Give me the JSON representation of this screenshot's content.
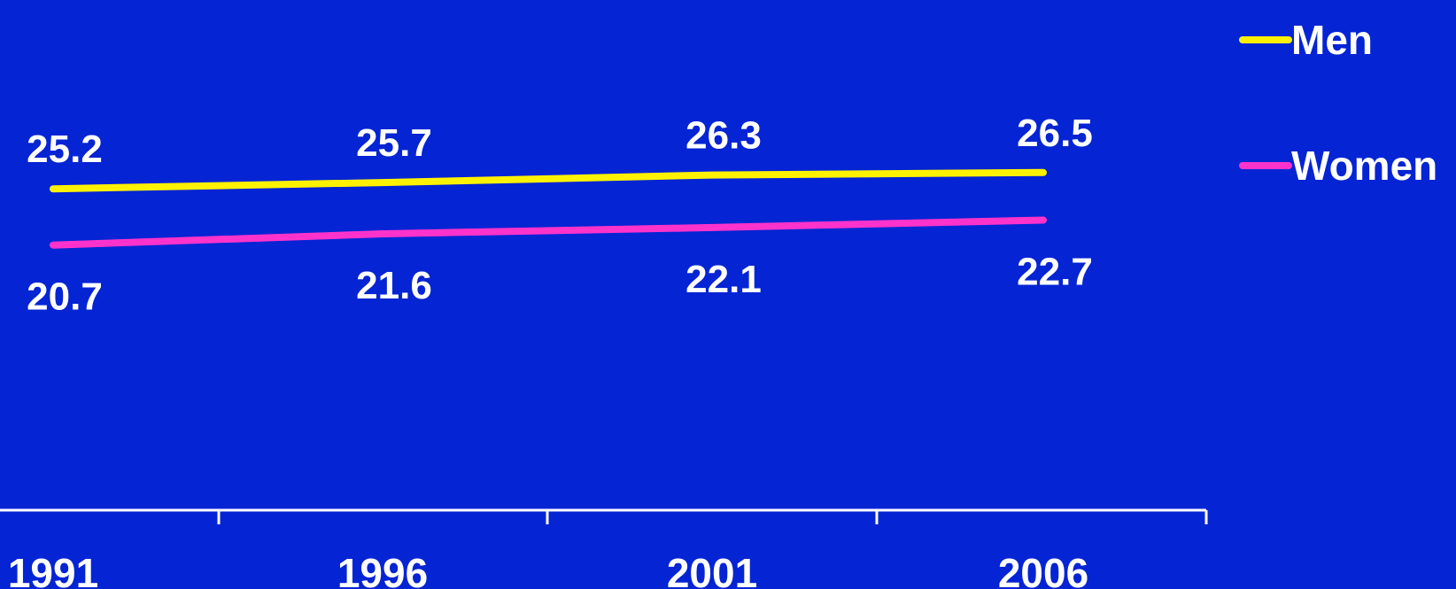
{
  "background_color": "#0524d3",
  "axis_color": "#ffffff",
  "label_color": "#ffffff",
  "chart_data": {
    "type": "line",
    "categories": [
      "1991",
      "1996",
      "2001",
      "2006"
    ],
    "series": [
      {
        "name": "Men",
        "values": [
          25.2,
          25.7,
          26.3,
          26.5
        ],
        "color": "#fff200",
        "labels": [
          "25.2",
          "25.7",
          "26.3",
          "26.5"
        ],
        "label_position": "above"
      },
      {
        "name": "Women",
        "values": [
          20.7,
          21.6,
          22.1,
          22.7
        ],
        "color": "#ff33cc",
        "labels": [
          "20.7",
          "21.6",
          "22.1",
          "22.7"
        ],
        "label_position": "below"
      }
    ],
    "ylim": [
      0,
      30
    ],
    "grid": false,
    "legend": "right",
    "title": "",
    "xlabel": "",
    "ylabel": ""
  }
}
